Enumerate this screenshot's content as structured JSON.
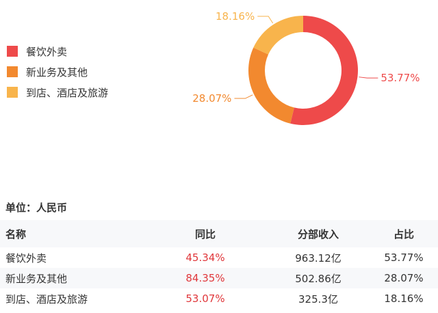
{
  "legend": [
    {
      "label": "餐饮外卖",
      "color": "#ee4a4a"
    },
    {
      "label": "新业务及其他",
      "color": "#f2892f"
    },
    {
      "label": "到店、酒店及旅游",
      "color": "#f8b44c"
    }
  ],
  "chart_data": {
    "type": "pie",
    "categories": [
      "餐饮外卖",
      "新业务及其他",
      "到店、酒店及旅游"
    ],
    "values": [
      53.77,
      28.07,
      18.16
    ],
    "labels": [
      "53.77%",
      "28.07%",
      "18.16%"
    ],
    "colors": [
      "#ee4a4a",
      "#f2892f",
      "#f8b44c"
    ],
    "style": "donut",
    "legend_position": "left"
  },
  "unit_label": "单位：人民币",
  "table": {
    "headers": [
      "名称",
      "同比",
      "分部收入",
      "占比"
    ],
    "rows": [
      {
        "name": "餐饮外卖",
        "yoy": "45.34%",
        "revenue": "963.12亿",
        "share": "53.77%"
      },
      {
        "name": "新业务及其他",
        "yoy": "84.35%",
        "revenue": "502.86亿",
        "share": "28.07%"
      },
      {
        "name": "到店、酒店及旅游",
        "yoy": "53.07%",
        "revenue": "325.3亿",
        "share": "18.16%"
      }
    ]
  }
}
